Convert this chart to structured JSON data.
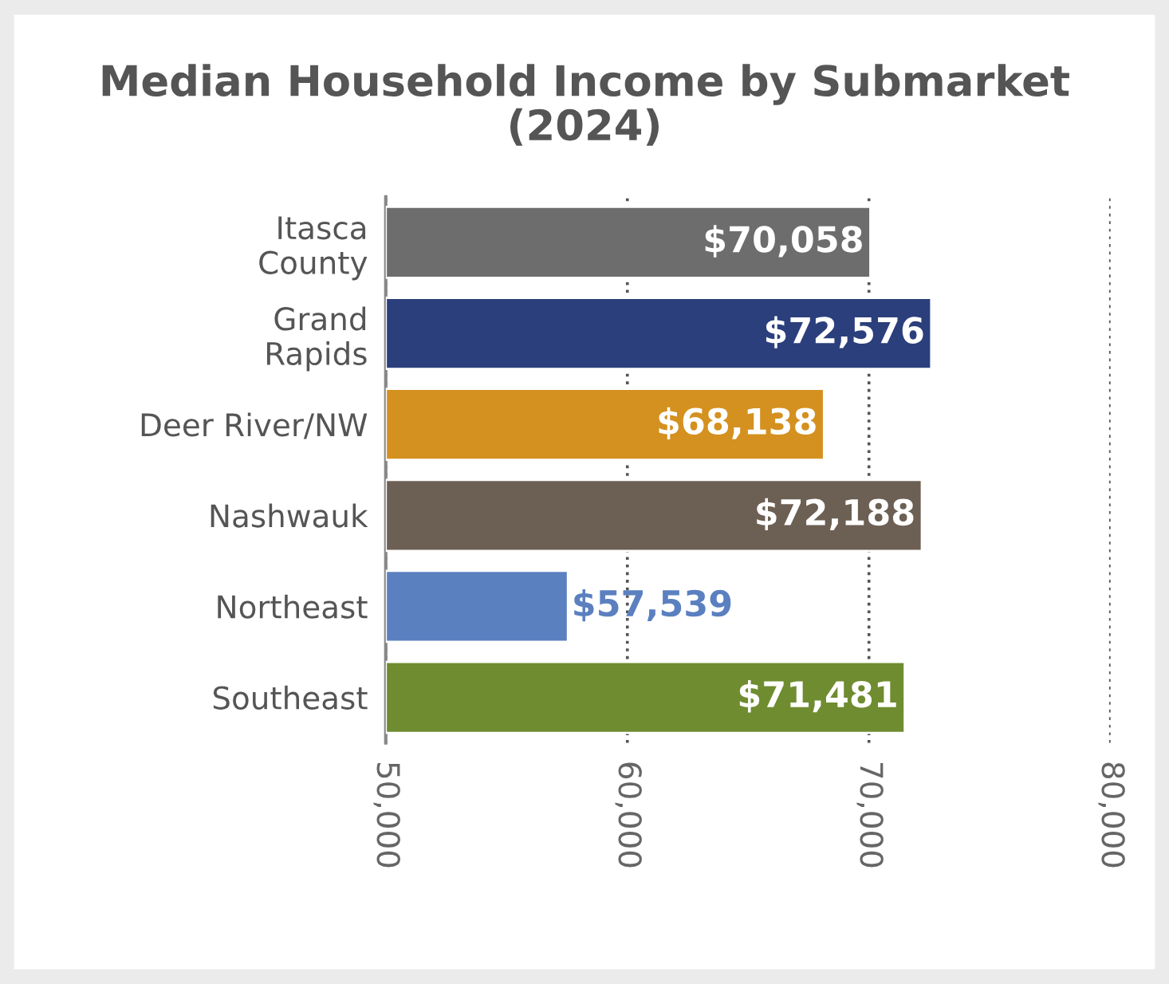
{
  "chart_data": {
    "type": "bar",
    "orientation": "horizontal",
    "title": "Median Household Income by Submarket\n(2024)",
    "categories": [
      "Itasca\nCounty",
      "Grand\nRapids",
      "Deer River/NW",
      "Nashwauk",
      "Northeast",
      "Southeast"
    ],
    "values": [
      70058,
      72576,
      68138,
      72188,
      57539,
      71481
    ],
    "colors": [
      "#6d6d6d",
      "#2b3f7c",
      "#d4911f",
      "#6c5f53",
      "#5b80c0",
      "#6f8c30"
    ],
    "value_labels": [
      "$70,058",
      "$72,576",
      "$68,138",
      "$72,188",
      "$57,539",
      "$71,481"
    ],
    "xlim": [
      50000,
      80000
    ],
    "xticks": [
      {
        "value": 50000,
        "label": "50,000"
      },
      {
        "value": 60000,
        "label": "60,000"
      },
      {
        "value": 70000,
        "label": "70,000"
      },
      {
        "value": 80000,
        "label": "80,000"
      }
    ],
    "grid": "x"
  }
}
